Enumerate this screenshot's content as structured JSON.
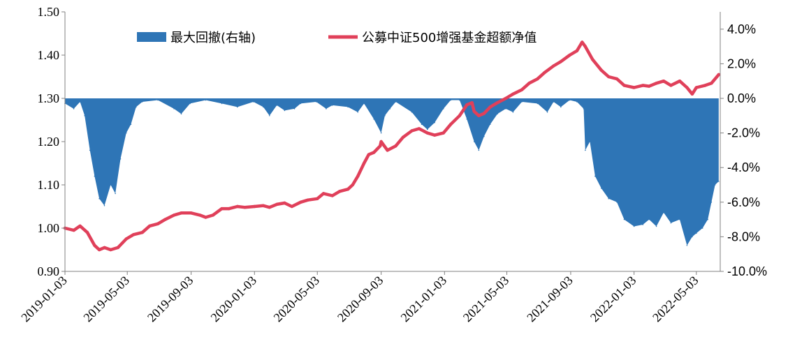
{
  "chart_data": {
    "type": "line",
    "title": "",
    "xlabel": "",
    "ylabel": "",
    "grid": false,
    "legend_position": "top",
    "x_tick_labels": [
      "2019-01-03",
      "2019-05-03",
      "2019-09-03",
      "2020-01-03",
      "2020-05-03",
      "2020-09-03",
      "2021-01-03",
      "2021-05-03",
      "2021-09-03",
      "2022-01-03",
      "2022-05-03"
    ],
    "left_axis": {
      "ylim": [
        0.9,
        1.5
      ],
      "tick_labels": [
        "0.90",
        "1.00",
        "1.10",
        "1.20",
        "1.30",
        "1.40",
        "1.50"
      ]
    },
    "right_axis": {
      "ylim": [
        -10.0,
        5.0
      ],
      "tick_labels": [
        "-10.0%",
        "-8.0%",
        "-6.0%",
        "-4.0%",
        "-2.0%",
        "0.0%",
        "2.0%",
        "4.0%"
      ]
    },
    "series": [
      {
        "name": "最大回撤(右轴)",
        "kind": "area",
        "axis": "right",
        "color": "#2E75B6",
        "unit": "%",
        "points": [
          [
            "2019-01-03",
            -0.3
          ],
          [
            "2019-01-20",
            -0.6
          ],
          [
            "2019-02-01",
            -0.2
          ],
          [
            "2019-02-10",
            -1.0
          ],
          [
            "2019-02-20",
            -3.0
          ],
          [
            "2019-03-01",
            -4.5
          ],
          [
            "2019-03-10",
            -5.8
          ],
          [
            "2019-03-20",
            -6.2
          ],
          [
            "2019-04-01",
            -5.0
          ],
          [
            "2019-04-10",
            -5.5
          ],
          [
            "2019-04-20",
            -3.5
          ],
          [
            "2019-05-01",
            -2.0
          ],
          [
            "2019-05-10",
            -1.5
          ],
          [
            "2019-05-20",
            -0.5
          ],
          [
            "2019-06-01",
            -0.2
          ],
          [
            "2019-07-01",
            -0.1
          ],
          [
            "2019-08-01",
            -0.6
          ],
          [
            "2019-08-15",
            -0.9
          ],
          [
            "2019-09-01",
            -0.3
          ],
          [
            "2019-10-01",
            -0.1
          ],
          [
            "2019-11-01",
            -0.3
          ],
          [
            "2019-12-01",
            -0.5
          ],
          [
            "2020-01-01",
            -0.2
          ],
          [
            "2020-01-20",
            -0.5
          ],
          [
            "2020-02-01",
            -1.0
          ],
          [
            "2020-02-15",
            -0.4
          ],
          [
            "2020-03-01",
            -0.7
          ],
          [
            "2020-03-20",
            -0.6
          ],
          [
            "2020-04-01",
            -0.3
          ],
          [
            "2020-05-01",
            -0.2
          ],
          [
            "2020-05-20",
            -0.6
          ],
          [
            "2020-06-01",
            -0.4
          ],
          [
            "2020-07-01",
            -0.5
          ],
          [
            "2020-07-20",
            -0.8
          ],
          [
            "2020-08-01",
            -0.3
          ],
          [
            "2020-08-20",
            -1.2
          ],
          [
            "2020-09-03",
            -2.0
          ],
          [
            "2020-09-10",
            -1.0
          ],
          [
            "2020-09-20",
            -0.6
          ],
          [
            "2020-10-01",
            -0.2
          ],
          [
            "2020-11-01",
            -0.8
          ],
          [
            "2020-11-20",
            -1.5
          ],
          [
            "2020-12-01",
            -1.8
          ],
          [
            "2020-12-15",
            -1.4
          ],
          [
            "2021-01-01",
            -0.6
          ],
          [
            "2021-01-15",
            -0.1
          ],
          [
            "2021-02-01",
            -0.1
          ],
          [
            "2021-02-15",
            -1.2
          ],
          [
            "2021-03-01",
            -2.5
          ],
          [
            "2021-03-10",
            -3.0
          ],
          [
            "2021-03-20",
            -2.2
          ],
          [
            "2021-04-01",
            -1.5
          ],
          [
            "2021-04-15",
            -0.9
          ],
          [
            "2021-05-01",
            -0.6
          ],
          [
            "2021-05-15",
            -0.8
          ],
          [
            "2021-06-01",
            -0.2
          ],
          [
            "2021-07-01",
            -0.3
          ],
          [
            "2021-07-20",
            -0.8
          ],
          [
            "2021-08-01",
            -0.2
          ],
          [
            "2021-08-15",
            -0.5
          ],
          [
            "2021-09-01",
            -0.1
          ],
          [
            "2021-09-15",
            -0.2
          ],
          [
            "2021-09-28",
            -0.6
          ],
          [
            "2021-10-01",
            -3.0
          ],
          [
            "2021-10-10",
            -2.5
          ],
          [
            "2021-10-20",
            -4.5
          ],
          [
            "2021-11-01",
            -5.2
          ],
          [
            "2021-11-15",
            -5.8
          ],
          [
            "2021-12-01",
            -6.0
          ],
          [
            "2021-12-15",
            -7.0
          ],
          [
            "2022-01-03",
            -7.4
          ],
          [
            "2022-01-20",
            -7.3
          ],
          [
            "2022-02-01",
            -7.0
          ],
          [
            "2022-02-15",
            -7.4
          ],
          [
            "2022-03-01",
            -6.6
          ],
          [
            "2022-03-15",
            -7.2
          ],
          [
            "2022-04-01",
            -7.0
          ],
          [
            "2022-04-15",
            -8.5
          ],
          [
            "2022-04-25",
            -8.0
          ],
          [
            "2022-05-03",
            -7.8
          ],
          [
            "2022-05-15",
            -7.5
          ],
          [
            "2022-05-25",
            -7.0
          ],
          [
            "2022-06-01",
            -6.0
          ],
          [
            "2022-06-08",
            -5.0
          ],
          [
            "2022-06-15",
            -4.8
          ]
        ]
      },
      {
        "name": "公募中证500增强基金超额净值",
        "kind": "line",
        "axis": "left",
        "color": "#E0405A",
        "points": [
          [
            "2019-01-03",
            1.0
          ],
          [
            "2019-01-20",
            0.995
          ],
          [
            "2019-02-01",
            1.005
          ],
          [
            "2019-02-15",
            0.99
          ],
          [
            "2019-03-01",
            0.96
          ],
          [
            "2019-03-10",
            0.95
          ],
          [
            "2019-03-20",
            0.955
          ],
          [
            "2019-04-01",
            0.95
          ],
          [
            "2019-04-15",
            0.955
          ],
          [
            "2019-05-01",
            0.975
          ],
          [
            "2019-05-15",
            0.985
          ],
          [
            "2019-06-01",
            0.99
          ],
          [
            "2019-06-15",
            1.005
          ],
          [
            "2019-07-01",
            1.01
          ],
          [
            "2019-07-15",
            1.02
          ],
          [
            "2019-08-01",
            1.03
          ],
          [
            "2019-08-15",
            1.035
          ],
          [
            "2019-09-03",
            1.035
          ],
          [
            "2019-09-20",
            1.03
          ],
          [
            "2019-10-01",
            1.025
          ],
          [
            "2019-10-15",
            1.03
          ],
          [
            "2019-11-01",
            1.045
          ],
          [
            "2019-11-15",
            1.045
          ],
          [
            "2019-12-01",
            1.05
          ],
          [
            "2019-12-15",
            1.048
          ],
          [
            "2020-01-03",
            1.05
          ],
          [
            "2020-01-20",
            1.052
          ],
          [
            "2020-02-01",
            1.048
          ],
          [
            "2020-02-15",
            1.055
          ],
          [
            "2020-03-01",
            1.058
          ],
          [
            "2020-03-15",
            1.05
          ],
          [
            "2020-04-01",
            1.06
          ],
          [
            "2020-04-15",
            1.065
          ],
          [
            "2020-05-03",
            1.068
          ],
          [
            "2020-05-15",
            1.08
          ],
          [
            "2020-06-01",
            1.075
          ],
          [
            "2020-06-15",
            1.085
          ],
          [
            "2020-07-01",
            1.09
          ],
          [
            "2020-07-10",
            1.1
          ],
          [
            "2020-07-20",
            1.12
          ],
          [
            "2020-08-01",
            1.15
          ],
          [
            "2020-08-10",
            1.17
          ],
          [
            "2020-08-20",
            1.175
          ],
          [
            "2020-09-01",
            1.19
          ],
          [
            "2020-09-03",
            1.2
          ],
          [
            "2020-09-15",
            1.18
          ],
          [
            "2020-10-01",
            1.19
          ],
          [
            "2020-10-15",
            1.21
          ],
          [
            "2020-11-01",
            1.225
          ],
          [
            "2020-11-15",
            1.23
          ],
          [
            "2020-12-01",
            1.22
          ],
          [
            "2020-12-15",
            1.215
          ],
          [
            "2021-01-01",
            1.22
          ],
          [
            "2021-01-15",
            1.24
          ],
          [
            "2021-02-01",
            1.26
          ],
          [
            "2021-02-15",
            1.285
          ],
          [
            "2021-02-25",
            1.29
          ],
          [
            "2021-03-01",
            1.27
          ],
          [
            "2021-03-10",
            1.26
          ],
          [
            "2021-03-20",
            1.265
          ],
          [
            "2021-04-01",
            1.28
          ],
          [
            "2021-04-15",
            1.29
          ],
          [
            "2021-05-01",
            1.3
          ],
          [
            "2021-05-15",
            1.31
          ],
          [
            "2021-06-01",
            1.32
          ],
          [
            "2021-06-15",
            1.335
          ],
          [
            "2021-07-01",
            1.345
          ],
          [
            "2021-07-15",
            1.36
          ],
          [
            "2021-08-01",
            1.375
          ],
          [
            "2021-08-15",
            1.385
          ],
          [
            "2021-09-01",
            1.4
          ],
          [
            "2021-09-15",
            1.41
          ],
          [
            "2021-09-25",
            1.43
          ],
          [
            "2021-10-01",
            1.42
          ],
          [
            "2021-10-15",
            1.39
          ],
          [
            "2021-11-01",
            1.365
          ],
          [
            "2021-11-15",
            1.35
          ],
          [
            "2021-12-01",
            1.345
          ],
          [
            "2021-12-15",
            1.33
          ],
          [
            "2022-01-03",
            1.325
          ],
          [
            "2022-01-20",
            1.33
          ],
          [
            "2022-02-01",
            1.328
          ],
          [
            "2022-02-15",
            1.335
          ],
          [
            "2022-03-01",
            1.34
          ],
          [
            "2022-03-15",
            1.33
          ],
          [
            "2022-04-01",
            1.34
          ],
          [
            "2022-04-15",
            1.325
          ],
          [
            "2022-04-25",
            1.31
          ],
          [
            "2022-05-03",
            1.325
          ],
          [
            "2022-05-20",
            1.33
          ],
          [
            "2022-06-01",
            1.335
          ],
          [
            "2022-06-15",
            1.355
          ]
        ]
      }
    ]
  }
}
